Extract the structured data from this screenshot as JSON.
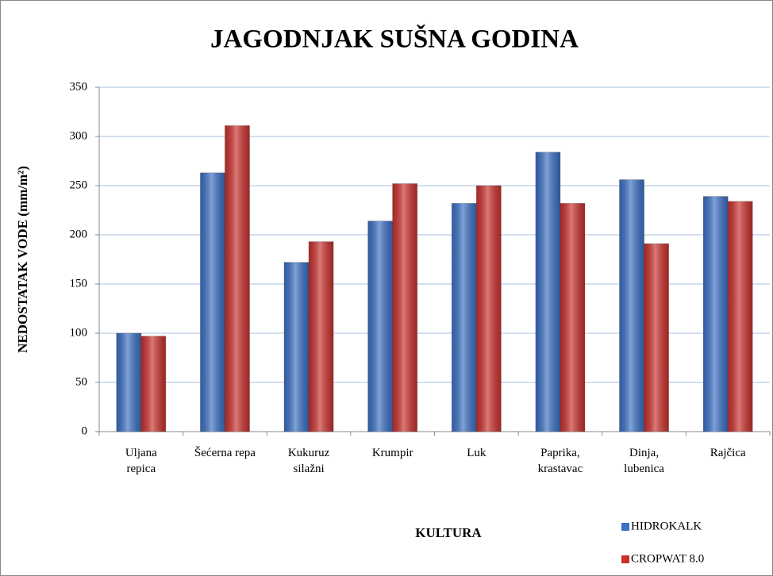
{
  "chart_data": {
    "type": "bar",
    "title": "JAGODNJAK SUŠNA GODINA",
    "x_label": "KULTURA",
    "y_label": "NEDOSTATAK VODE (mm/m²)",
    "categories": [
      "Uljana\nrepica",
      "Šećerna repa",
      "Kukuruz\nsilažni",
      "Krumpir",
      "Luk",
      "Paprika,\nkrastavac",
      "Dinja,\nlubenica",
      "Rajčica"
    ],
    "series": [
      {
        "name": "HIDROKALK",
        "color": "#3a6fc4",
        "values": [
          100,
          263,
          172,
          214,
          232,
          284,
          256,
          239
        ]
      },
      {
        "name": "CROPWAT 8.0",
        "color": "#c9302c",
        "values": [
          97,
          311,
          193,
          252,
          250,
          232,
          191,
          234
        ]
      }
    ],
    "ylim": [
      0,
      350
    ],
    "yticks": [
      0,
      50,
      100,
      150,
      200,
      250,
      300,
      350
    ],
    "grid": true,
    "legend": "bottom-right"
  }
}
